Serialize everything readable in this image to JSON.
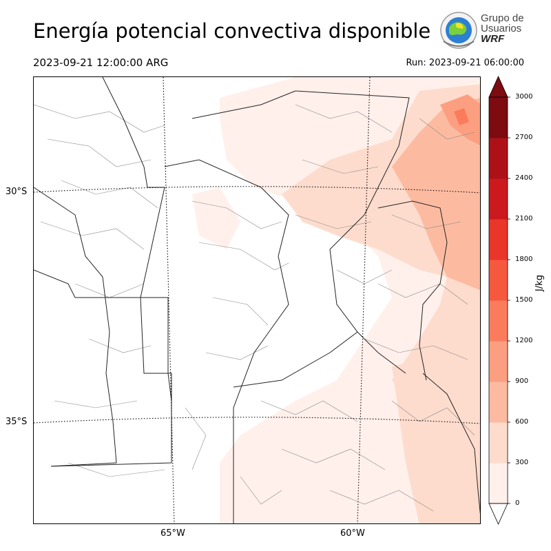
{
  "title": "Energía potencial convectiva disponible",
  "valid_time": "2023-09-21 12:00:00 ARG",
  "run_time": "Run: 2023-09-21 06:00:00",
  "logo": {
    "line1": "Grupo de",
    "line2": "Usuarios",
    "line3": "WRF"
  },
  "map": {
    "lat_labels": [
      "30°S",
      "35°S"
    ],
    "lon_labels": [
      "65°W",
      "60°W"
    ]
  },
  "colorbar": {
    "unit": "J/kg",
    "ticks": [
      "0",
      "300",
      "600",
      "900",
      "1200",
      "1500",
      "1800",
      "2100",
      "2400",
      "2700",
      "3000"
    ],
    "colors": [
      "#fff0eb",
      "#fedccd",
      "#fcbba1",
      "#fc9f81",
      "#fb7c5c",
      "#f6583e",
      "#ea362a",
      "#cc191e",
      "#ad1117",
      "#7d0b10"
    ],
    "extend": "max"
  }
}
